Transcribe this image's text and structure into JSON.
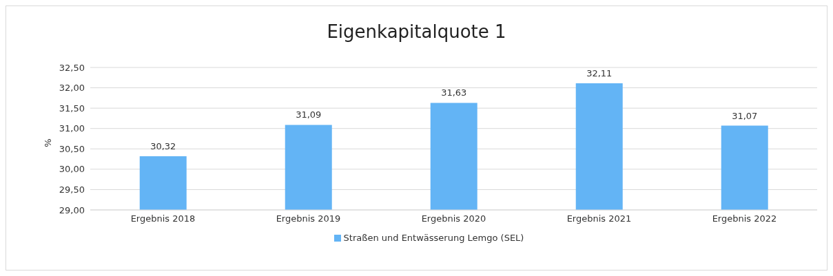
{
  "chart_data": {
    "type": "bar",
    "title": "Eigenkapitalquote 1",
    "ylabel": "%",
    "categories": [
      "Ergebnis 2018",
      "Ergebnis 2019",
      "Ergebnis 2020",
      "Ergebnis 2021",
      "Ergebnis 2022"
    ],
    "series": [
      {
        "name": "Straßen und Entwässerung Lemgo (SEL)",
        "color": "#63b4f5",
        "values": [
          30.32,
          31.09,
          31.63,
          32.11,
          31.07
        ],
        "value_labels": [
          "30,32",
          "31,09",
          "31,63",
          "32,11",
          "31,07"
        ]
      }
    ],
    "ylim": [
      29,
      32.5
    ],
    "yticks": [
      {
        "value": 29,
        "label": "29,00"
      },
      {
        "value": 29.5,
        "label": "29,50"
      },
      {
        "value": 30,
        "label": "30,00"
      },
      {
        "value": 30.5,
        "label": "30,50"
      },
      {
        "value": 31,
        "label": "31,00"
      },
      {
        "value": 31.5,
        "label": "31,50"
      },
      {
        "value": 32,
        "label": "32,00"
      },
      {
        "value": 32.5,
        "label": "32,50"
      }
    ],
    "grid": "y",
    "legend": "bottom"
  }
}
